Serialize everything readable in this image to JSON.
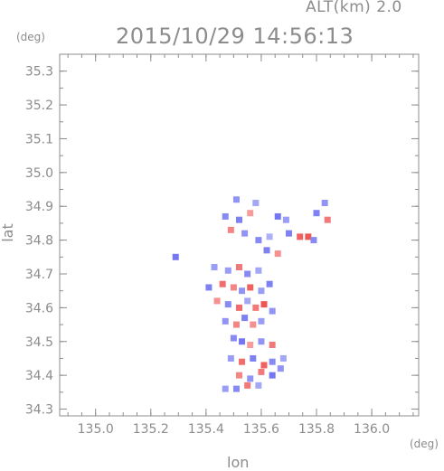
{
  "header": {
    "altitude": "ALT(km) 2.0",
    "datetime": "2015/10/29 14:56:13"
  },
  "chart_data": {
    "type": "scatter",
    "title": "2015/10/29 14:56:13",
    "subtitle": "ALT(km) 2.0",
    "xlabel": "lon",
    "ylabel": "lat",
    "x_unit": "(deg)",
    "y_unit": "(deg)",
    "xlim": [
      134.87,
      136.17
    ],
    "ylim": [
      34.28,
      35.35
    ],
    "xticks": [
      "135.0",
      "135.2",
      "135.4",
      "135.6",
      "135.8",
      "136.0"
    ],
    "yticks": [
      "34.3",
      "34.4",
      "34.5",
      "34.6",
      "34.7",
      "34.8",
      "34.9",
      "35.0",
      "35.1",
      "35.2",
      "35.3"
    ],
    "grid": false,
    "colors": {
      "positive": "#ee4a4a",
      "negative": "#6a6ef0",
      "axis": "#8c8c8c"
    },
    "points": [
      {
        "lon": 135.51,
        "lat": 34.92,
        "v": -0.6
      },
      {
        "lon": 135.58,
        "lat": 34.91,
        "v": -0.4
      },
      {
        "lon": 135.47,
        "lat": 34.87,
        "v": -0.7
      },
      {
        "lon": 135.52,
        "lat": 34.86,
        "v": -0.8
      },
      {
        "lon": 135.56,
        "lat": 34.88,
        "v": 0.3
      },
      {
        "lon": 135.66,
        "lat": 34.87,
        "v": -0.9
      },
      {
        "lon": 135.69,
        "lat": 34.86,
        "v": -0.5
      },
      {
        "lon": 135.8,
        "lat": 34.88,
        "v": -0.8
      },
      {
        "lon": 135.83,
        "lat": 34.91,
        "v": -0.6
      },
      {
        "lon": 135.84,
        "lat": 34.86,
        "v": 0.6
      },
      {
        "lon": 135.49,
        "lat": 34.83,
        "v": 0.5
      },
      {
        "lon": 135.54,
        "lat": 34.82,
        "v": -0.6
      },
      {
        "lon": 135.59,
        "lat": 34.8,
        "v": -0.7
      },
      {
        "lon": 135.63,
        "lat": 34.81,
        "v": -0.3
      },
      {
        "lon": 135.7,
        "lat": 34.82,
        "v": -0.8
      },
      {
        "lon": 135.74,
        "lat": 34.81,
        "v": 0.8
      },
      {
        "lon": 135.77,
        "lat": 34.81,
        "v": 0.9
      },
      {
        "lon": 135.79,
        "lat": 34.8,
        "v": -0.7
      },
      {
        "lon": 135.62,
        "lat": 34.77,
        "v": -0.8
      },
      {
        "lon": 135.66,
        "lat": 34.76,
        "v": 0.4
      },
      {
        "lon": 135.29,
        "lat": 34.75,
        "v": -0.9
      },
      {
        "lon": 135.48,
        "lat": 34.71,
        "v": -0.5
      },
      {
        "lon": 135.52,
        "lat": 34.72,
        "v": 0.6
      },
      {
        "lon": 135.55,
        "lat": 34.7,
        "v": -0.7
      },
      {
        "lon": 135.59,
        "lat": 34.71,
        "v": -0.4
      },
      {
        "lon": 135.43,
        "lat": 34.72,
        "v": -0.5
      },
      {
        "lon": 135.41,
        "lat": 34.66,
        "v": -0.8
      },
      {
        "lon": 135.46,
        "lat": 34.67,
        "v": 0.7
      },
      {
        "lon": 135.5,
        "lat": 34.66,
        "v": 0.5
      },
      {
        "lon": 135.53,
        "lat": 34.65,
        "v": -0.6
      },
      {
        "lon": 135.56,
        "lat": 34.66,
        "v": 0.8
      },
      {
        "lon": 135.6,
        "lat": 34.65,
        "v": -0.5
      },
      {
        "lon": 135.63,
        "lat": 34.67,
        "v": -0.8
      },
      {
        "lon": 135.44,
        "lat": 34.62,
        "v": 0.4
      },
      {
        "lon": 135.48,
        "lat": 34.61,
        "v": -0.7
      },
      {
        "lon": 135.52,
        "lat": 34.6,
        "v": 0.7
      },
      {
        "lon": 135.55,
        "lat": 34.62,
        "v": -0.4
      },
      {
        "lon": 135.58,
        "lat": 34.6,
        "v": 0.6
      },
      {
        "lon": 135.61,
        "lat": 34.61,
        "v": 0.9
      },
      {
        "lon": 135.64,
        "lat": 34.59,
        "v": -0.6
      },
      {
        "lon": 135.47,
        "lat": 34.56,
        "v": -0.6
      },
      {
        "lon": 135.51,
        "lat": 34.55,
        "v": 0.5
      },
      {
        "lon": 135.54,
        "lat": 34.57,
        "v": -0.8
      },
      {
        "lon": 135.57,
        "lat": 34.55,
        "v": 0.4
      },
      {
        "lon": 135.6,
        "lat": 34.56,
        "v": -0.5
      },
      {
        "lon": 135.5,
        "lat": 34.51,
        "v": -0.7
      },
      {
        "lon": 135.53,
        "lat": 34.5,
        "v": -0.9
      },
      {
        "lon": 135.56,
        "lat": 34.49,
        "v": 0.3
      },
      {
        "lon": 135.6,
        "lat": 34.5,
        "v": -0.6
      },
      {
        "lon": 135.64,
        "lat": 34.49,
        "v": 0.6
      },
      {
        "lon": 135.49,
        "lat": 34.45,
        "v": -0.5
      },
      {
        "lon": 135.53,
        "lat": 34.44,
        "v": 0.7
      },
      {
        "lon": 135.57,
        "lat": 34.45,
        "v": -0.8
      },
      {
        "lon": 135.61,
        "lat": 34.43,
        "v": 0.8
      },
      {
        "lon": 135.64,
        "lat": 34.44,
        "v": -0.7
      },
      {
        "lon": 135.68,
        "lat": 34.45,
        "v": -0.4
      },
      {
        "lon": 135.52,
        "lat": 34.4,
        "v": 0.5
      },
      {
        "lon": 135.56,
        "lat": 34.39,
        "v": -0.6
      },
      {
        "lon": 135.6,
        "lat": 34.41,
        "v": 0.6
      },
      {
        "lon": 135.64,
        "lat": 34.4,
        "v": -0.9
      },
      {
        "lon": 135.67,
        "lat": 34.42,
        "v": -0.6
      },
      {
        "lon": 135.47,
        "lat": 34.36,
        "v": -0.5
      },
      {
        "lon": 135.51,
        "lat": 34.36,
        "v": -0.7
      },
      {
        "lon": 135.55,
        "lat": 34.37,
        "v": 0.6
      },
      {
        "lon": 135.59,
        "lat": 34.37,
        "v": -0.4
      }
    ]
  }
}
